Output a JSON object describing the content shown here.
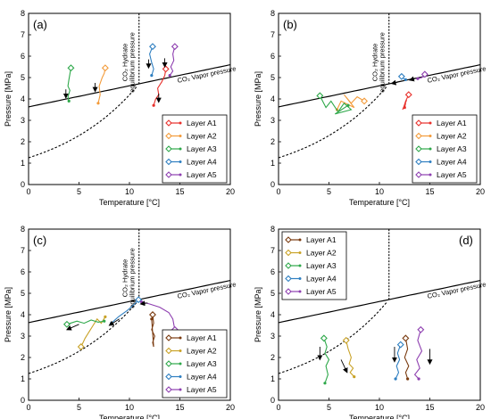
{
  "chart_data": [
    {
      "type": "line",
      "panel_label": "(a)",
      "xlabel": "Temperature [°C]",
      "ylabel": "Pressure [MPa]",
      "xlim": [
        0,
        20
      ],
      "ylim": [
        0,
        8
      ],
      "xticks": [
        "0",
        "5",
        "10",
        "15",
        "20"
      ],
      "yticks": [
        "0",
        "1",
        "2",
        "3",
        "4",
        "5",
        "6",
        "7",
        "8"
      ],
      "hydrate_label_1": "CO₂ Hydrate",
      "hydrate_label_2": "equilibrium pressure",
      "vapor_label": "CO₂ Vapor pressure",
      "legend_position": "lower-right",
      "legend": [
        "Layer A1",
        "Layer A2",
        "Layer A3",
        "Layer A4",
        "Layer A5"
      ],
      "series": [
        {
          "name": "Layer A1",
          "color": "#e8302b",
          "marker": "diamond",
          "x": [
            13.6,
            13.5,
            13.2,
            12.8,
            12.9,
            12.6,
            12.4
          ],
          "y": [
            5.4,
            5.1,
            4.8,
            4.5,
            4.2,
            4.0,
            3.7
          ]
        },
        {
          "name": "Layer A2",
          "color": "#f39b3a",
          "marker": "diamond",
          "x": [
            7.6,
            7.5,
            7.3,
            7.0,
            7.1,
            6.9
          ],
          "y": [
            5.45,
            5.2,
            5.0,
            4.6,
            4.2,
            3.8
          ]
        },
        {
          "name": "Layer A3",
          "color": "#2ea84a",
          "marker": "diamond",
          "x": [
            4.2,
            4.0,
            3.9,
            4.1,
            3.9,
            4.0
          ],
          "y": [
            5.45,
            4.9,
            4.6,
            4.4,
            4.1,
            3.9
          ]
        },
        {
          "name": "Layer A4",
          "color": "#2f7fc1",
          "marker": "diamond",
          "x": [
            12.3,
            12.0,
            12.2,
            12.4,
            12.2
          ],
          "y": [
            6.45,
            6.1,
            5.7,
            5.4,
            5.1
          ]
        },
        {
          "name": "Layer A5",
          "color": "#8e3fb0",
          "marker": "diamond",
          "x": [
            14.5,
            14.3,
            14.4,
            14.1,
            14.3,
            14.0
          ],
          "y": [
            6.45,
            6.1,
            5.8,
            5.5,
            5.3,
            5.1
          ]
        }
      ],
      "arrows": [
        {
          "x": [
            3.7,
            3.7
          ],
          "y": [
            4.45,
            4.05
          ]
        },
        {
          "x": [
            6.6,
            6.6
          ],
          "y": [
            4.75,
            4.35
          ]
        },
        {
          "x": [
            11.9,
            11.9
          ],
          "y": [
            5.85,
            5.45
          ]
        },
        {
          "x": [
            13.5,
            13.5
          ],
          "y": [
            5.9,
            5.5
          ]
        },
        {
          "x": [
            12.9,
            12.9
          ],
          "y": [
            4.25,
            3.85
          ]
        }
      ]
    },
    {
      "type": "line",
      "panel_label": "(b)",
      "xlabel": "Temperature [°C]",
      "ylabel": "Pressure [MPa]",
      "xlim": [
        0,
        20
      ],
      "ylim": [
        0,
        8
      ],
      "xticks": [
        "0",
        "5",
        "10",
        "15",
        "20"
      ],
      "yticks": [
        "0",
        "1",
        "2",
        "3",
        "4",
        "5",
        "6",
        "7",
        "8"
      ],
      "hydrate_label_1": "CO₂ Hydrate",
      "hydrate_label_2": "equilibrium pressure",
      "vapor_label": "CO₂ Vapor pressure",
      "legend_position": "lower-right",
      "legend": [
        "Layer A1",
        "Layer A2",
        "Layer A3",
        "Layer A4",
        "Layer A5"
      ],
      "series": [
        {
          "name": "Layer A1",
          "color": "#e8302b",
          "marker": "diamond",
          "x": [
            12.9,
            12.6,
            12.4,
            12.7,
            12.3,
            12.6,
            12.5
          ],
          "y": [
            4.2,
            3.9,
            3.6,
            3.95,
            3.5,
            3.8,
            3.6
          ]
        },
        {
          "name": "Layer A2",
          "color": "#f39b3a",
          "marker": "diamond",
          "x": [
            8.5,
            7.8,
            7.2,
            6.5,
            7.5,
            6.2,
            5.8
          ],
          "y": [
            3.9,
            4.1,
            3.8,
            4.2,
            3.6,
            3.9,
            3.5
          ]
        },
        {
          "name": "Layer A3",
          "color": "#2ea84a",
          "marker": "diamond",
          "x": [
            4.1,
            4.7,
            5.2,
            5.9,
            6.5,
            7.2,
            5.6,
            6.9
          ],
          "y": [
            4.15,
            3.6,
            3.9,
            3.4,
            3.8,
            3.5,
            3.3,
            3.7
          ]
        },
        {
          "name": "Layer A4",
          "color": "#2f7fc1",
          "marker": "diamond",
          "x": [
            12.2,
            12.4,
            12.6
          ],
          "y": [
            5.05,
            4.95,
            4.9
          ]
        },
        {
          "name": "Layer A5",
          "color": "#8e3fb0",
          "marker": "diamond",
          "x": [
            14.5,
            14.2,
            13.8
          ],
          "y": [
            5.15,
            5.0,
            4.95
          ]
        }
      ],
      "arrows": [
        {
          "x": [
            11.8,
            11.2
          ],
          "y": [
            4.78,
            4.72
          ]
        },
        {
          "x": [
            13.5,
            13.0
          ],
          "y": [
            4.95,
            4.88
          ]
        }
      ]
    },
    {
      "type": "line",
      "panel_label": "(c)",
      "xlabel": "Temperature [°C]",
      "ylabel": "Pressure [MPa]",
      "xlim": [
        0,
        20
      ],
      "ylim": [
        0,
        8
      ],
      "xticks": [
        "0",
        "5",
        "10",
        "15",
        "20"
      ],
      "yticks": [
        "0",
        "1",
        "2",
        "3",
        "4",
        "5",
        "6",
        "7",
        "8"
      ],
      "hydrate_label_1": "CO₂ Hydrate",
      "hydrate_label_2": "equilibrium pressure",
      "vapor_label": "CO₂ Vapor pressure",
      "legend_position": "lower-right",
      "legend": [
        "Layer A1",
        "Layer A2",
        "Layer A3",
        "Layer A4",
        "Layer A5"
      ],
      "series": [
        {
          "name": "Layer A1",
          "color": "#7a3b10",
          "marker": "diamond",
          "x": [
            12.3,
            12.4,
            12.2,
            12.5,
            12.3,
            12.4,
            12.2
          ],
          "y": [
            4.0,
            3.6,
            3.3,
            3.0,
            2.7,
            2.5,
            3.8
          ]
        },
        {
          "name": "Layer A2",
          "color": "#c9a227",
          "marker": "diamond",
          "x": [
            5.2,
            5.6,
            6.0,
            6.4,
            6.8,
            7.2,
            7.6
          ],
          "y": [
            2.5,
            2.9,
            3.2,
            3.5,
            3.8,
            3.6,
            3.9
          ]
        },
        {
          "name": "Layer A3",
          "color": "#2ea84a",
          "marker": "diamond",
          "x": [
            3.8,
            4.8,
            5.5,
            6.2,
            6.9,
            7.5
          ],
          "y": [
            3.55,
            3.7,
            3.6,
            3.75,
            3.65,
            3.7
          ]
        },
        {
          "name": "Layer A4",
          "color": "#2f7fc1",
          "marker": "diamond",
          "x": [
            10.9,
            10.5,
            9.8,
            8.9,
            8.2
          ],
          "y": [
            4.7,
            4.5,
            4.2,
            3.9,
            3.6
          ]
        },
        {
          "name": "Layer A5",
          "color": "#8e3fb0",
          "marker": "diamond",
          "x": [
            14.5,
            14.3,
            13.9,
            13.0,
            12.0,
            11.2
          ],
          "y": [
            3.3,
            3.8,
            4.1,
            4.35,
            4.5,
            4.6
          ]
        }
      ],
      "arrows": [
        {
          "x": [
            5.0,
            3.8
          ],
          "y": [
            3.55,
            3.3
          ]
        },
        {
          "x": [
            9.0,
            8.0
          ],
          "y": [
            3.8,
            3.5
          ]
        },
        {
          "x": [
            11.8,
            11.1
          ],
          "y": [
            4.55,
            4.5
          ]
        }
      ]
    },
    {
      "type": "line",
      "panel_label": "(d)",
      "xlabel": "Temperature [°C]",
      "ylabel": "Pressure [MPa]",
      "xlim": [
        0,
        20
      ],
      "ylim": [
        0,
        8
      ],
      "xticks": [
        "0",
        "5",
        "10",
        "15",
        "20"
      ],
      "yticks": [
        "0",
        "1",
        "2",
        "3",
        "4",
        "5",
        "6",
        "7",
        "8"
      ],
      "hydrate_label_1": "",
      "hydrate_label_2": "",
      "vapor_label": "CO₂ Vapor pressure",
      "legend_position": "upper-left",
      "legend": [
        "Layer A1",
        "Layer A2",
        "Layer A3",
        "Layer A4",
        "Layer A5"
      ],
      "series": [
        {
          "name": "Layer A1",
          "color": "#7a3b10",
          "marker": "diamond",
          "x": [
            12.6,
            12.8,
            12.5,
            12.9,
            12.6,
            12.8
          ],
          "y": [
            2.9,
            2.4,
            2.0,
            1.6,
            1.3,
            1.0
          ]
        },
        {
          "name": "Layer A2",
          "color": "#c9a227",
          "marker": "diamond",
          "x": [
            6.7,
            6.9,
            7.2,
            7.0,
            7.4,
            7.1,
            7.5
          ],
          "y": [
            2.8,
            2.4,
            2.0,
            1.7,
            1.5,
            1.3,
            1.1
          ]
        },
        {
          "name": "Layer A3",
          "color": "#2ea84a",
          "marker": "diamond",
          "x": [
            4.5,
            4.8,
            4.6,
            5.0,
            4.7,
            4.9,
            4.6
          ],
          "y": [
            2.9,
            2.5,
            2.2,
            1.9,
            1.6,
            1.2,
            0.8
          ]
        },
        {
          "name": "Layer A4",
          "color": "#2f7fc1",
          "marker": "diamond",
          "x": [
            12.1,
            11.8,
            12.0,
            11.7,
            11.9,
            11.6
          ],
          "y": [
            2.6,
            2.2,
            1.9,
            1.6,
            1.3,
            1.0
          ]
        },
        {
          "name": "Layer A5",
          "color": "#8e3fb0",
          "marker": "diamond",
          "x": [
            14.1,
            13.8,
            14.2,
            13.7,
            14.0,
            13.5,
            13.9
          ],
          "y": [
            3.3,
            2.8,
            2.3,
            1.9,
            1.5,
            1.2,
            1.0
          ]
        }
      ],
      "arrows": [
        {
          "x": [
            4.1,
            4.1
          ],
          "y": [
            2.5,
            1.9
          ]
        },
        {
          "x": [
            6.2,
            6.8
          ],
          "y": [
            1.9,
            1.3
          ]
        },
        {
          "x": [
            11.5,
            11.5
          ],
          "y": [
            2.5,
            1.8
          ]
        },
        {
          "x": [
            15.0,
            15.0
          ],
          "y": [
            2.4,
            1.7
          ]
        }
      ]
    }
  ]
}
